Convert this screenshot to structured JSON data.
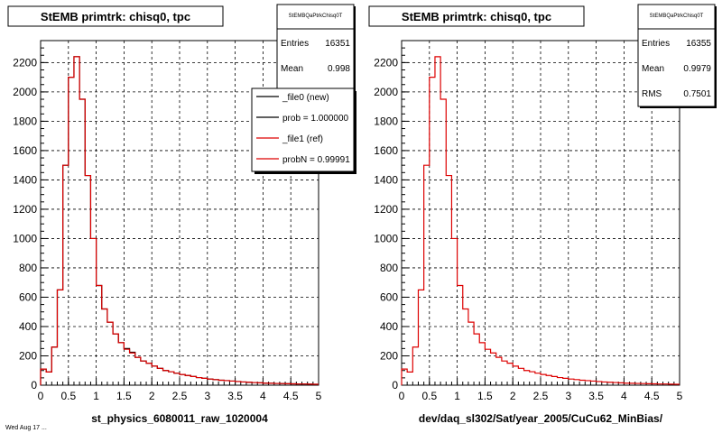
{
  "chart_data": [
    {
      "type": "histogram",
      "title": "StEMB primtrk: chisq0, tpc",
      "xlabel": "st_physics_6080011_raw_1020004",
      "xlim": [
        0,
        5
      ],
      "ylim": [
        0,
        2350
      ],
      "x_ticks": [
        "0",
        "0.5",
        "1",
        "1.5",
        "2",
        "2.5",
        "3",
        "3.5",
        "4",
        "4.5",
        "5"
      ],
      "y_ticks": [
        "0",
        "200",
        "400",
        "600",
        "800",
        "1000",
        "1200",
        "1400",
        "1600",
        "1800",
        "2000",
        "2200"
      ],
      "grid": true,
      "bin_width": 0.1,
      "series": [
        {
          "name": "_file0 (new)",
          "color": "#000000",
          "values": [
            110,
            90,
            260,
            650,
            1500,
            2100,
            2240,
            1950,
            1430,
            1000,
            680,
            520,
            430,
            350,
            290,
            250,
            225,
            190,
            165,
            150,
            130,
            115,
            100,
            92,
            82,
            73,
            66,
            59,
            52,
            47,
            42,
            38,
            34,
            31,
            28,
            25,
            22,
            20,
            18,
            16,
            14,
            13,
            12,
            11,
            10,
            9,
            8,
            8,
            7,
            6
          ]
        },
        {
          "name": "_file1 (ref)",
          "color": "#dd0000",
          "values": [
            110,
            90,
            260,
            650,
            1500,
            2100,
            2240,
            1950,
            1430,
            1000,
            680,
            520,
            430,
            350,
            290,
            245,
            220,
            190,
            165,
            150,
            130,
            115,
            100,
            92,
            82,
            73,
            66,
            59,
            52,
            47,
            42,
            38,
            34,
            31,
            28,
            25,
            22,
            20,
            18,
            16,
            14,
            13,
            12,
            11,
            10,
            9,
            8,
            8,
            7,
            6
          ]
        }
      ],
      "stats": {
        "name": "StEMBQaPtrkChisq0T",
        "rows": [
          {
            "label": "Entries",
            "value": "16351"
          },
          {
            "label": "Mean",
            "value": "0.998"
          }
        ]
      },
      "legend": {
        "placement": "top-right",
        "entries": [
          {
            "text": "_file0 (new)",
            "color": "#000000"
          },
          {
            "text": "prob = 1.000000",
            "color": "#000000"
          },
          {
            "text": "_file1 (ref)",
            "color": "#dd0000"
          },
          {
            "text": "probN = 0.99991",
            "color": "#dd0000"
          }
        ]
      }
    },
    {
      "type": "histogram",
      "title": "StEMB primtrk: chisq0, tpc",
      "xlabel": "dev/daq_sl302/Sat/year_2005/CuCu62_MinBias/",
      "xlim": [
        0,
        5
      ],
      "ylim": [
        0,
        2350
      ],
      "x_ticks": [
        "0",
        "0.5",
        "1",
        "1.5",
        "2",
        "2.5",
        "3",
        "3.5",
        "4",
        "4.5",
        "5"
      ],
      "y_ticks": [
        "0",
        "200",
        "400",
        "600",
        "800",
        "1000",
        "1200",
        "1400",
        "1600",
        "1800",
        "2000",
        "2200"
      ],
      "grid": true,
      "bin_width": 0.1,
      "series": [
        {
          "name": "",
          "color": "#dd0000",
          "values": [
            110,
            90,
            260,
            650,
            1500,
            2100,
            2240,
            1950,
            1430,
            1000,
            680,
            520,
            430,
            350,
            290,
            245,
            220,
            190,
            165,
            150,
            130,
            115,
            100,
            92,
            82,
            73,
            66,
            59,
            52,
            47,
            42,
            38,
            34,
            31,
            28,
            25,
            22,
            20,
            18,
            16,
            14,
            13,
            12,
            11,
            10,
            9,
            8,
            8,
            7,
            6
          ]
        }
      ],
      "stats": {
        "name": "StEMBQaPtrkChisq0T",
        "rows": [
          {
            "label": "Entries",
            "value": "16355"
          },
          {
            "label": "Mean",
            "value": "0.9979"
          },
          {
            "label": "RMS",
            "value": "0.7501"
          }
        ]
      }
    }
  ],
  "footer": {
    "text": "Wed Aug 17 ..."
  }
}
